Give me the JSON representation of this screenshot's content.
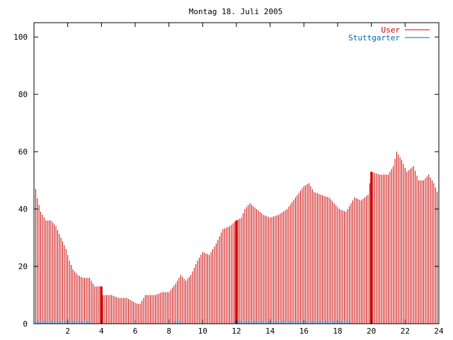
{
  "chart_data": {
    "type": "bar",
    "title": "Montag 18. Juli 2005",
    "xlabel": "",
    "ylabel": "",
    "xlim": [
      0,
      24
    ],
    "ylim": [
      0,
      105
    ],
    "grid": false,
    "legend_position": "top-right",
    "x_ticks": [
      2,
      4,
      6,
      8,
      10,
      12,
      14,
      16,
      18,
      20,
      22,
      24
    ],
    "y_ticks": [
      0,
      20,
      40,
      60,
      80,
      100
    ],
    "x_tick_labels": [
      "2",
      "4",
      "6",
      "8",
      "10",
      "12",
      "14",
      "16",
      "18",
      "20",
      "22",
      "24"
    ],
    "y_tick_labels": [
      "0",
      "20",
      "40",
      "60",
      "80",
      "100"
    ],
    "series": [
      {
        "name": "User",
        "color": "#cc0000",
        "profile": [
          [
            0,
            51
          ],
          [
            0.15,
            45
          ],
          [
            0.4,
            39
          ],
          [
            0.7,
            36
          ],
          [
            1.0,
            36
          ],
          [
            1.3,
            34
          ],
          [
            1.6,
            30
          ],
          [
            1.9,
            26
          ],
          [
            2.1,
            22
          ],
          [
            2.3,
            19
          ],
          [
            2.6,
            17
          ],
          [
            2.9,
            16
          ],
          [
            3.3,
            16
          ],
          [
            3.6,
            13
          ],
          [
            3.95,
            13
          ],
          [
            4.1,
            10
          ],
          [
            4.6,
            10
          ],
          [
            5.0,
            9
          ],
          [
            5.5,
            9
          ],
          [
            5.8,
            8
          ],
          [
            6.1,
            7
          ],
          [
            6.3,
            7
          ],
          [
            6.6,
            10
          ],
          [
            7.2,
            10
          ],
          [
            7.6,
            11
          ],
          [
            8.0,
            11
          ],
          [
            8.4,
            14
          ],
          [
            8.7,
            17
          ],
          [
            9.0,
            15
          ],
          [
            9.3,
            17
          ],
          [
            9.7,
            22
          ],
          [
            10.0,
            25
          ],
          [
            10.4,
            24
          ],
          [
            10.8,
            28
          ],
          [
            11.2,
            33
          ],
          [
            11.6,
            34
          ],
          [
            12.0,
            36
          ],
          [
            12.3,
            37
          ],
          [
            12.5,
            40
          ],
          [
            12.8,
            42
          ],
          [
            13.2,
            40
          ],
          [
            13.6,
            38
          ],
          [
            14.0,
            37
          ],
          [
            14.5,
            38
          ],
          [
            15.0,
            40
          ],
          [
            15.5,
            44
          ],
          [
            16.0,
            48
          ],
          [
            16.3,
            49
          ],
          [
            16.6,
            46
          ],
          [
            17.0,
            45
          ],
          [
            17.5,
            44
          ],
          [
            17.8,
            42
          ],
          [
            18.1,
            40
          ],
          [
            18.5,
            39
          ],
          [
            18.8,
            42
          ],
          [
            19.0,
            44
          ],
          [
            19.4,
            43
          ],
          [
            19.8,
            45
          ],
          [
            20.0,
            53
          ],
          [
            20.5,
            52
          ],
          [
            21.0,
            52
          ],
          [
            21.3,
            55
          ],
          [
            21.5,
            60
          ],
          [
            21.8,
            57
          ],
          [
            22.1,
            53
          ],
          [
            22.5,
            55
          ],
          [
            22.8,
            50
          ],
          [
            23.1,
            50
          ],
          [
            23.4,
            52
          ],
          [
            23.7,
            49
          ],
          [
            23.9,
            46
          ]
        ],
        "spikes": [
          [
            4.0,
            13
          ],
          [
            12.0,
            36
          ],
          [
            20.0,
            53
          ]
        ]
      },
      {
        "name": "Stuttgarter",
        "color": "#0066bb",
        "profile": [
          [
            0,
            1
          ],
          [
            3.5,
            1
          ],
          [
            3.6,
            0
          ],
          [
            8.2,
            0
          ],
          [
            8.3,
            1
          ],
          [
            8.7,
            1
          ],
          [
            8.8,
            0
          ],
          [
            11.8,
            0
          ],
          [
            11.9,
            1
          ],
          [
            18.8,
            1
          ],
          [
            18.9,
            0
          ],
          [
            24,
            0
          ]
        ],
        "spikes": []
      }
    ]
  }
}
